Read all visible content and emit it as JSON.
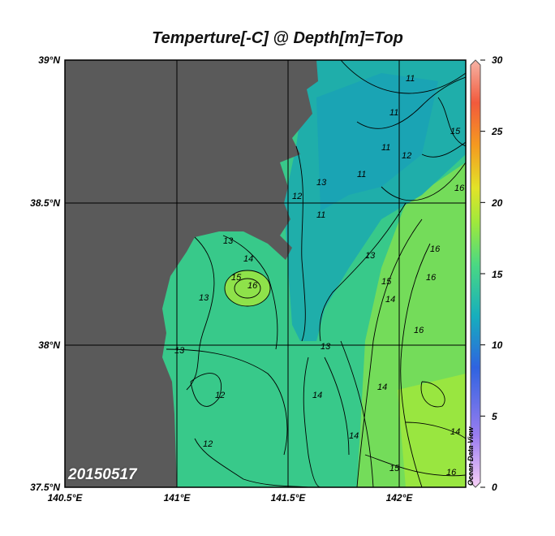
{
  "title": "Temperture[-C] @ Depth[m]=Top",
  "date_label": "20150517",
  "brand": "Ocean Data View",
  "lat_labels": [
    "39°N",
    "38.5°N",
    "38°N",
    "37.5°N"
  ],
  "lon_labels": [
    "140.5°E",
    "141°E",
    "141.5°E",
    "142°E"
  ],
  "colorbar": {
    "min": 0,
    "max": 30,
    "ticks": [
      "30",
      "25",
      "20",
      "15",
      "10",
      "5",
      "0"
    ]
  },
  "colors": {
    "land": "#5a5a5a",
    "ocean_base": "#33c88a",
    "warm": "#9fe93a",
    "cool": "#19a9a5"
  },
  "contour_labels": [
    "11",
    "11",
    "11",
    "11",
    "11",
    "12",
    "12",
    "12",
    "12",
    "13",
    "13",
    "13",
    "13",
    "13",
    "13",
    "14",
    "14",
    "14",
    "14",
    "14",
    "14",
    "15",
    "15",
    "15",
    "15",
    "16",
    "16",
    "16",
    "16",
    "16",
    "16"
  ]
}
